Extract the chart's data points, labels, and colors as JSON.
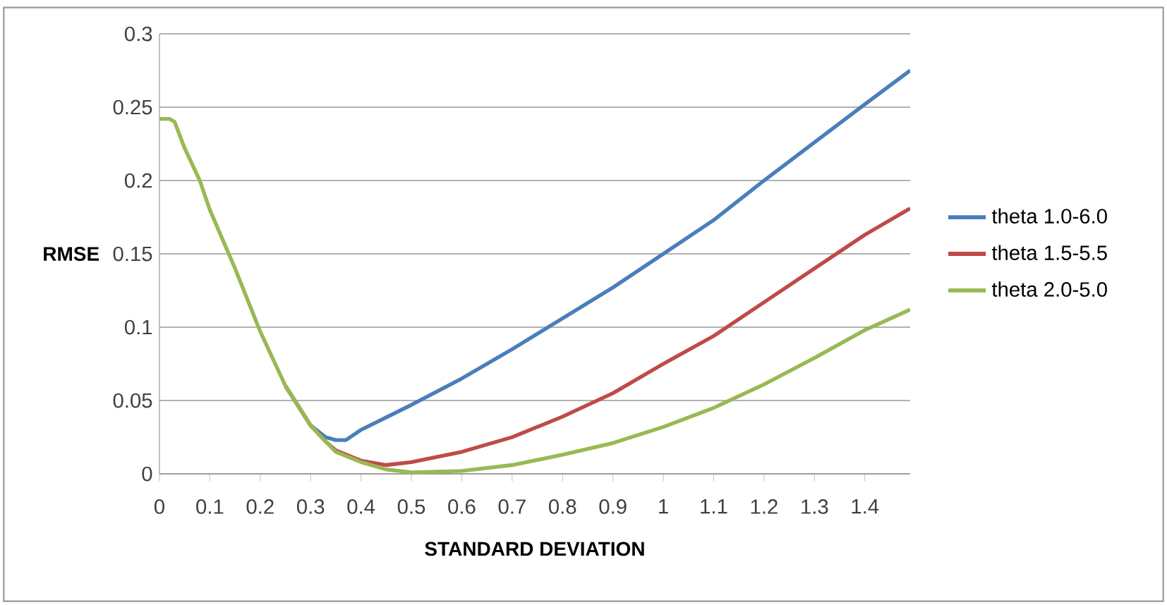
{
  "chart_data": {
    "type": "line",
    "xlabel": "STANDARD DEVIATION",
    "ylabel": "RMSE",
    "xlim": [
      0,
      1.49
    ],
    "ylim": [
      0,
      0.3
    ],
    "xticks": [
      0,
      0.1,
      0.2,
      0.3,
      0.4,
      0.5,
      0.6,
      0.7,
      0.8,
      0.9,
      1,
      1.1,
      1.2,
      1.3,
      1.4
    ],
    "yticks": [
      0,
      0.05,
      0.1,
      0.15,
      0.2,
      0.25,
      0.3
    ],
    "grid": "y",
    "legend": "right",
    "marker": "none",
    "line_style": "solid",
    "series": [
      {
        "name": "theta 1.0-6.0",
        "color": "#4a7ebb",
        "x": [
          0.25,
          0.3,
          0.33,
          0.35,
          0.37,
          0.4,
          0.5,
          0.6,
          0.7,
          0.8,
          0.9,
          1.0,
          1.1,
          1.2,
          1.3,
          1.4,
          1.49
        ],
        "values": [
          0.06,
          0.033,
          0.025,
          0.023,
          0.023,
          0.03,
          0.047,
          0.065,
          0.085,
          0.106,
          0.127,
          0.15,
          0.173,
          0.2,
          0.226,
          0.252,
          0.275
        ]
      },
      {
        "name": "theta 1.5-5.5",
        "color": "#be4b48",
        "x": [
          0.25,
          0.3,
          0.33,
          0.35,
          0.4,
          0.45,
          0.5,
          0.6,
          0.7,
          0.8,
          0.9,
          1.0,
          1.1,
          1.2,
          1.3,
          1.4,
          1.49
        ],
        "values": [
          0.06,
          0.033,
          0.022,
          0.016,
          0.009,
          0.006,
          0.008,
          0.015,
          0.025,
          0.039,
          0.055,
          0.075,
          0.094,
          0.117,
          0.14,
          0.163,
          0.181
        ]
      },
      {
        "name": "theta 2.0-5.0",
        "color": "#98b954",
        "x": [
          0,
          0.02,
          0.03,
          0.05,
          0.08,
          0.1,
          0.15,
          0.2,
          0.25,
          0.3,
          0.33,
          0.35,
          0.4,
          0.45,
          0.5,
          0.6,
          0.7,
          0.8,
          0.9,
          1.0,
          1.1,
          1.2,
          1.3,
          1.4,
          1.49
        ],
        "values": [
          0.242,
          0.242,
          0.24,
          0.222,
          0.2,
          0.18,
          0.14,
          0.097,
          0.06,
          0.033,
          0.022,
          0.015,
          0.008,
          0.003,
          0.001,
          0.002,
          0.006,
          0.013,
          0.021,
          0.032,
          0.045,
          0.061,
          0.079,
          0.098,
          0.112
        ]
      }
    ]
  }
}
